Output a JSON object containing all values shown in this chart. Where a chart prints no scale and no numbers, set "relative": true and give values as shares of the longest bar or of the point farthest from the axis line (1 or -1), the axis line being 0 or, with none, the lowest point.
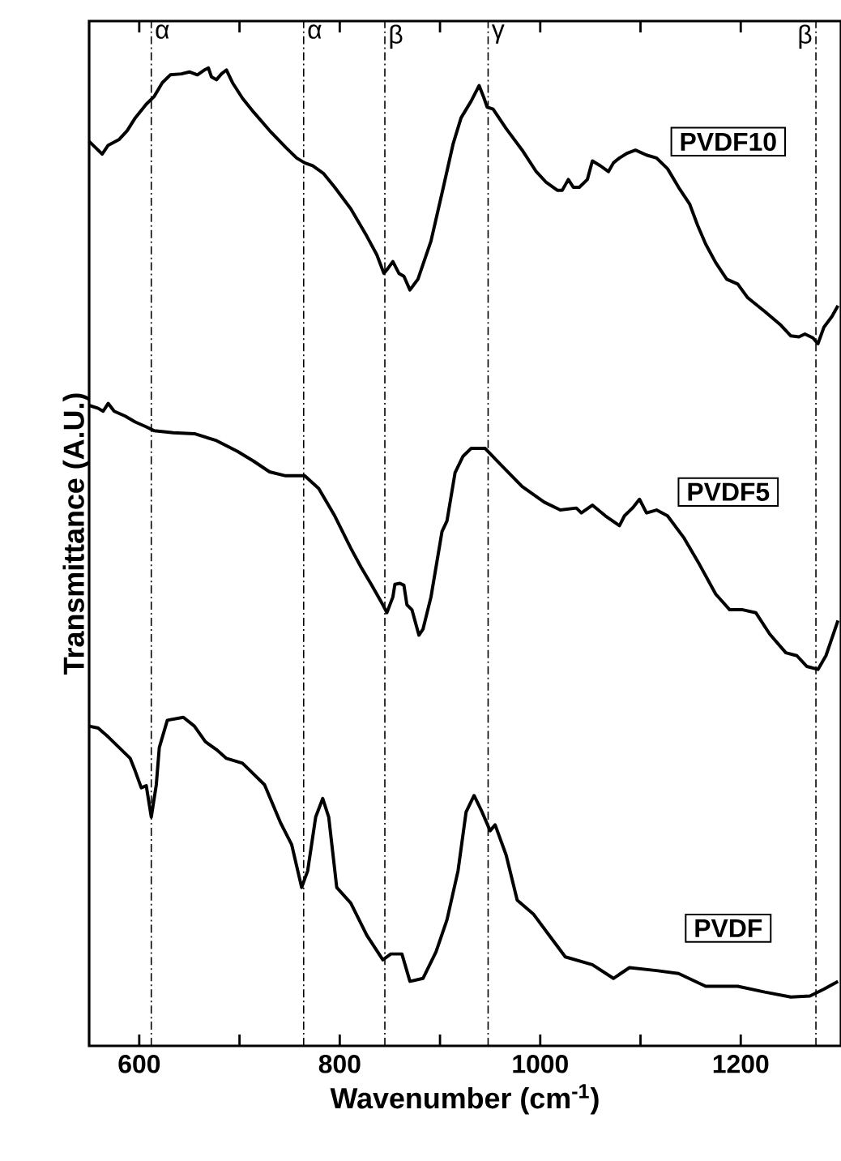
{
  "chart_data": {
    "type": "line",
    "relative": true,
    "xlabel": "Wavenumber (cm$^{-1}$)",
    "ylabel": "Transmittance (A.U.)",
    "xlim": [
      550,
      1300
    ],
    "xticks": [
      600,
      {
        "value": 700,
        "label": null
      },
      800,
      {
        "value": 900,
        "label": null
      },
      1000,
      {
        "value": 1100,
        "label": null
      },
      1200
    ],
    "legend": false,
    "grid": false,
    "ref_lines": [
      {
        "axis": "x",
        "value": 612,
        "label": "α"
      },
      {
        "axis": "x",
        "value": 764,
        "label": "α"
      },
      {
        "axis": "x",
        "value": 845,
        "label": "β"
      },
      {
        "axis": "x",
        "value": 948,
        "label": "γ"
      },
      {
        "axis": "x",
        "value": 1275,
        "label": "β"
      }
    ],
    "series": [
      {
        "name": "PVDF10",
        "color": "#000000",
        "x": [
          550,
          556,
          563,
          569,
          580,
          588,
          596,
          607,
          615,
          623,
          631,
          642,
          650,
          658,
          665,
          669,
          672,
          677,
          682,
          687,
          693,
          703,
          714,
          730,
          746,
          757,
          765,
          773,
          784,
          795,
          811,
          827,
          837,
          844,
          848,
          853,
          859,
          864,
          870,
          878,
          891,
          902,
          913,
          921,
          931,
          939,
          944,
          947,
          953,
          966,
          982,
          996,
          1006,
          1017,
          1022,
          1028,
          1033,
          1039,
          1047,
          1052,
          1060,
          1068,
          1073,
          1079,
          1087,
          1095,
          1106,
          1116,
          1127,
          1138,
          1149,
          1157,
          1165,
          1175,
          1186,
          1197,
          1207,
          1224,
          1240,
          1250,
          1258,
          1264,
          1272,
          1277,
          1283,
          1291,
          1297
        ],
        "values": [
          0.925,
          0.919,
          0.912,
          0.921,
          0.927,
          0.936,
          0.949,
          0.963,
          0.971,
          0.985,
          0.993,
          0.994,
          0.996,
          0.993,
          0.998,
          1.0,
          0.991,
          0.988,
          0.994,
          0.998,
          0.985,
          0.969,
          0.955,
          0.936,
          0.919,
          0.908,
          0.903,
          0.9,
          0.892,
          0.878,
          0.856,
          0.828,
          0.809,
          0.79,
          0.795,
          0.802,
          0.79,
          0.787,
          0.773,
          0.784,
          0.823,
          0.872,
          0.922,
          0.949,
          0.966,
          0.982,
          0.969,
          0.96,
          0.958,
          0.938,
          0.916,
          0.894,
          0.883,
          0.875,
          0.875,
          0.886,
          0.878,
          0.878,
          0.886,
          0.905,
          0.9,
          0.894,
          0.903,
          0.908,
          0.913,
          0.916,
          0.911,
          0.908,
          0.897,
          0.878,
          0.861,
          0.839,
          0.82,
          0.801,
          0.784,
          0.779,
          0.765,
          0.751,
          0.737,
          0.726,
          0.725,
          0.728,
          0.724,
          0.718,
          0.735,
          0.746,
          0.757
        ]
      },
      {
        "name": "PVDF5",
        "color": "#000000",
        "x": [
          550,
          559,
          564,
          569,
          575,
          586,
          596,
          607,
          615,
          634,
          655,
          677,
          698,
          714,
          730,
          746,
          765,
          779,
          795,
          811,
          821,
          832,
          843,
          847,
          853,
          855,
          860,
          864,
          867,
          872,
          879,
          883,
          891,
          902,
          907,
          915,
          923,
          931,
          945,
          961,
          982,
          1004,
          1020,
          1036,
          1041,
          1052,
          1065,
          1079,
          1084,
          1092,
          1099,
          1106,
          1116,
          1127,
          1143,
          1159,
          1175,
          1189,
          1202,
          1215,
          1229,
          1245,
          1256,
          1266,
          1277,
          1285,
          1297
        ],
        "values": [
          0.655,
          0.652,
          0.649,
          0.657,
          0.649,
          0.644,
          0.638,
          0.633,
          0.629,
          0.627,
          0.626,
          0.619,
          0.608,
          0.598,
          0.587,
          0.583,
          0.583,
          0.57,
          0.542,
          0.509,
          0.49,
          0.471,
          0.451,
          0.443,
          0.459,
          0.472,
          0.473,
          0.471,
          0.451,
          0.446,
          0.42,
          0.426,
          0.459,
          0.526,
          0.537,
          0.586,
          0.603,
          0.611,
          0.611,
          0.594,
          0.572,
          0.556,
          0.548,
          0.55,
          0.545,
          0.553,
          0.542,
          0.532,
          0.542,
          0.55,
          0.559,
          0.545,
          0.548,
          0.542,
          0.52,
          0.492,
          0.462,
          0.446,
          0.446,
          0.443,
          0.421,
          0.402,
          0.399,
          0.388,
          0.385,
          0.399,
          0.435
        ]
      },
      {
        "name": "PVDF",
        "color": "#000000",
        "x": [
          550,
          559,
          569,
          580,
          591,
          596,
          602,
          607,
          612,
          617,
          620,
          628,
          644,
          655,
          666,
          677,
          687,
          703,
          714,
          725,
          741,
          752,
          762,
          768,
          776,
          783,
          789,
          797,
          811,
          827,
          843,
          851,
          862,
          870,
          883,
          896,
          907,
          918,
          926,
          934,
          942,
          950,
          955,
          966,
          977,
          993,
          1009,
          1025,
          1052,
          1073,
          1089,
          1116,
          1138,
          1165,
          1197,
          1224,
          1250,
          1269,
          1283,
          1297
        ],
        "values": [
          0.327,
          0.325,
          0.316,
          0.305,
          0.294,
          0.281,
          0.264,
          0.266,
          0.234,
          0.267,
          0.305,
          0.333,
          0.336,
          0.327,
          0.311,
          0.303,
          0.294,
          0.289,
          0.278,
          0.267,
          0.228,
          0.206,
          0.162,
          0.179,
          0.234,
          0.253,
          0.234,
          0.162,
          0.146,
          0.113,
          0.088,
          0.094,
          0.094,
          0.066,
          0.069,
          0.096,
          0.129,
          0.179,
          0.239,
          0.256,
          0.239,
          0.22,
          0.226,
          0.195,
          0.149,
          0.135,
          0.113,
          0.091,
          0.083,
          0.069,
          0.08,
          0.077,
          0.074,
          0.061,
          0.061,
          0.055,
          0.05,
          0.051,
          0.058,
          0.066
        ]
      }
    ]
  }
}
